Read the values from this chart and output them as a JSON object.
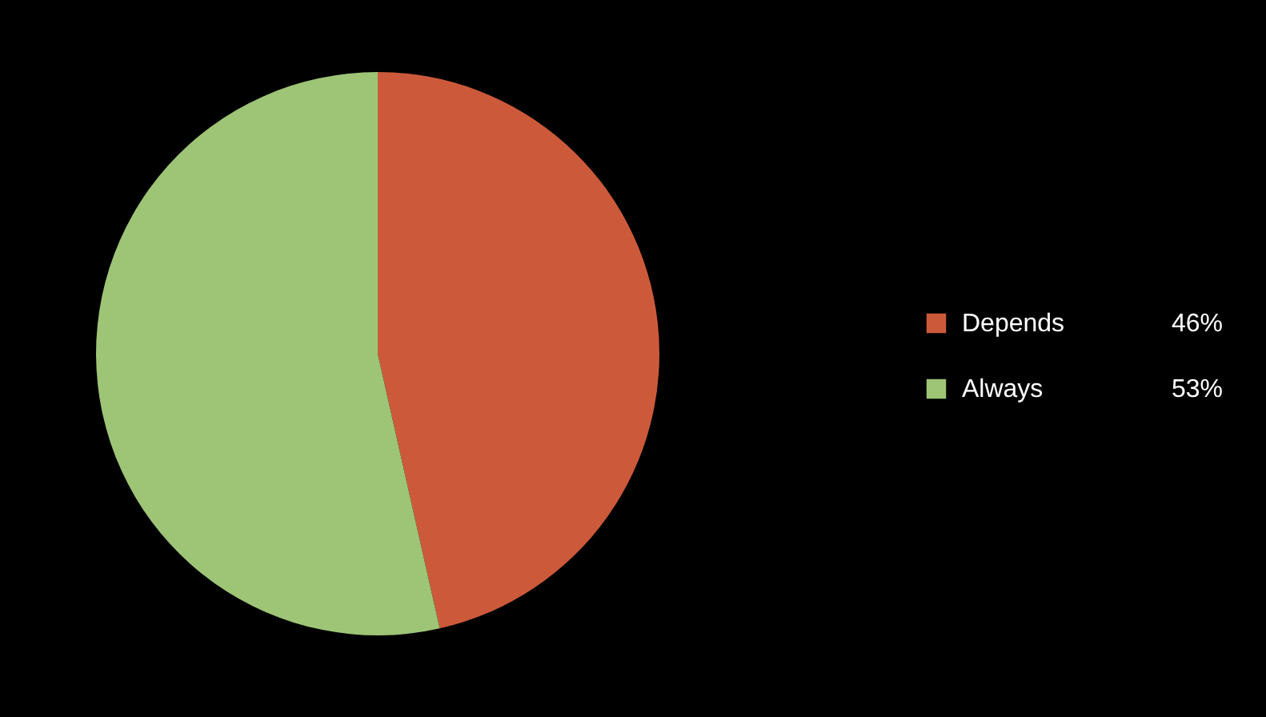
{
  "chart_data": {
    "type": "pie",
    "categories": [
      "Depends",
      "Always"
    ],
    "values": [
      46,
      53
    ],
    "colors": [
      "#cc5a3a",
      "#9ec476"
    ],
    "value_labels": [
      "46%",
      "53%"
    ],
    "legend": "right"
  }
}
